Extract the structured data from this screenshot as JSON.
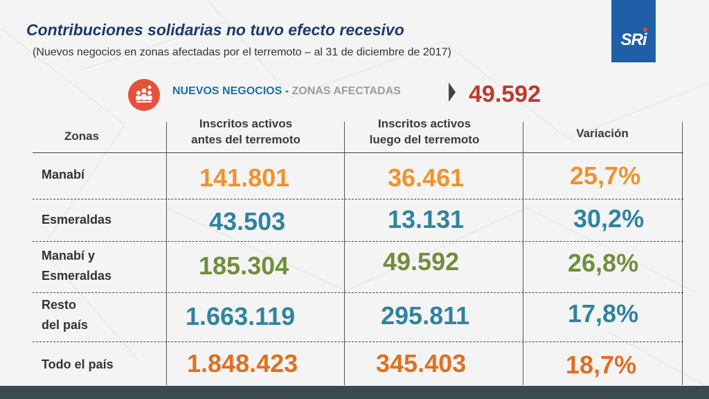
{
  "header": {
    "title": "Contribuciones solidarias no tuvo efecto recesivo",
    "subtitle": "(Nuevos negocios en zonas afectadas por el terremoto – al 31 de diciembre de 2017)"
  },
  "logo": {
    "text": "SRi"
  },
  "highlight": {
    "label_part1": "NUEVOS NEGOCIOS - ",
    "label_part2": "ZONAS AFECTADAS",
    "value": "49.592",
    "icon": "people-gear-icon"
  },
  "table": {
    "headers": {
      "zonas": "Zonas",
      "antes_line1": "Inscritos activos",
      "antes_line2": "antes del terremoto",
      "luego_line1": "Inscritos activos",
      "luego_line2": "luego del terremoto",
      "variacion": "Variación"
    },
    "rows": [
      {
        "zona_line1": "Manabí",
        "zona_line2": "",
        "antes": "141.801",
        "luego": "36.461",
        "variacion": "25,7%"
      },
      {
        "zona_line1": "Esmeraldas",
        "zona_line2": "",
        "antes": "43.503",
        "luego": "13.131",
        "variacion": "30,2%"
      },
      {
        "zona_line1": "Manabí y",
        "zona_line2": "Esmeraldas",
        "antes": "185.304",
        "luego": "49.592",
        "variacion": "26,8%"
      },
      {
        "zona_line1": "Resto",
        "zona_line2": "del país",
        "antes": "1.663.119",
        "luego": "295.811",
        "variacion": "17,8%"
      },
      {
        "zona_line1": "Todo el país",
        "zona_line2": "",
        "antes": "1.848.423",
        "luego": "345.403",
        "variacion": "18,7%"
      }
    ]
  },
  "colors": {
    "title": "#1b3a6b",
    "orange": "#f0922b",
    "teal": "#2e84a0",
    "green": "#6f8f3a",
    "dark_orange": "#e0701f",
    "highlight_value": "#c0392b",
    "logo_bg": "#1f5fa8"
  }
}
